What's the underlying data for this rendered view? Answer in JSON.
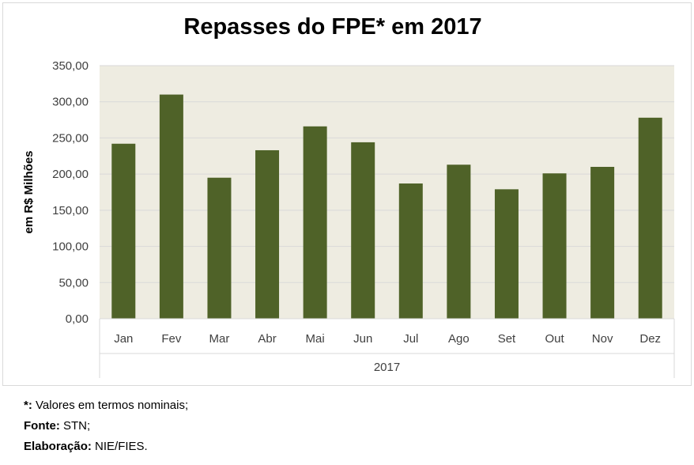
{
  "chart_data": {
    "type": "bar",
    "title": "Repasses do FPE* em 2017",
    "xlabel": "2017",
    "ylabel": "em R$ Milhões",
    "categories": [
      "Jan",
      "Fev",
      "Mar",
      "Abr",
      "Mai",
      "Jun",
      "Jul",
      "Ago",
      "Set",
      "Out",
      "Nov",
      "Dez"
    ],
    "values": [
      242,
      310,
      195,
      233,
      266,
      244,
      187,
      213,
      179,
      201,
      210,
      278
    ],
    "ylim": [
      0,
      350
    ],
    "yticks": [
      "0,00",
      "50,00",
      "100,00",
      "150,00",
      "200,00",
      "250,00",
      "300,00",
      "350,00"
    ],
    "grid": true,
    "bar_color": "#4f6228",
    "plot_bg": "#eeece1"
  },
  "footnotes": [
    {
      "label": "*:",
      "text": " Valores em termos nominais;"
    },
    {
      "label": "Fonte:",
      "text": " STN;"
    },
    {
      "label": "Elaboração:",
      "text": " NIE/FIES."
    }
  ]
}
